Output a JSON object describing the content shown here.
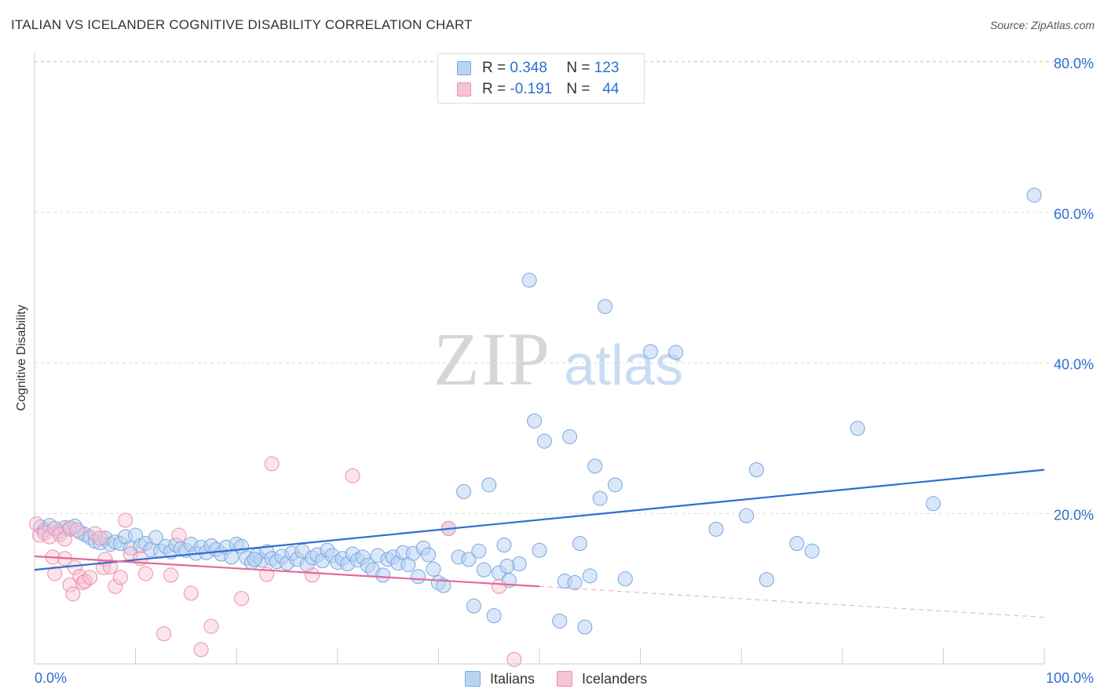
{
  "header": {
    "title": "ITALIAN VS ICELANDER COGNITIVE DISABILITY CORRELATION CHART",
    "source": "Source: ZipAtlas.com"
  },
  "watermark": {
    "zip": "ZIP",
    "atlas": "atlas"
  },
  "legend_top": {
    "rows": [
      {
        "r_label": "R =",
        "r_value": "0.348",
        "n_label": "N =",
        "n_value": "123"
      },
      {
        "r_label": "R =",
        "r_value": "-0.191",
        "n_label": "N =",
        "n_value": "44"
      }
    ]
  },
  "legend_bottom": {
    "italians": "Italians",
    "icelanders": "Icelanders"
  },
  "colors": {
    "italians_fill": "#b9d4f3",
    "italians_stroke": "#7aa6e0",
    "italians_line": "#2c6fd0",
    "icelanders_fill": "#f8c4d3",
    "icelanders_stroke": "#ec8fae",
    "icelanders_line": "#e36a96",
    "axis_label": "#2c6fd0"
  },
  "chart_data": {
    "type": "scatter",
    "title": "ITALIAN VS ICELANDER COGNITIVE DISABILITY CORRELATION CHART",
    "xlabel": "",
    "ylabel": "Cognitive Disability",
    "xlim": [
      0,
      100
    ],
    "ylim": [
      0,
      85
    ],
    "x_tick_labels": [
      "0.0%",
      "100.0%"
    ],
    "y_ticks": [
      20,
      40,
      60,
      80
    ],
    "y_tick_labels": [
      "20.0%",
      "40.0%",
      "60.0%",
      "80.0%"
    ],
    "grid": "horizontal dashed",
    "legend_placement": "top-center",
    "series": [
      {
        "name": "Italians",
        "r": 0.348,
        "n": 123,
        "trend": {
          "x": [
            0,
            100
          ],
          "y": [
            12.5,
            25.8
          ]
        },
        "points": [
          [
            0.6,
            18.2
          ],
          [
            1.0,
            17.8
          ],
          [
            1.5,
            18.4
          ],
          [
            2.0,
            18.0
          ],
          [
            2.5,
            17.6
          ],
          [
            3.0,
            18.1
          ],
          [
            3.5,
            17.9
          ],
          [
            4.0,
            18.3
          ],
          [
            4.5,
            17.5
          ],
          [
            5.0,
            17.2
          ],
          [
            5.5,
            16.8
          ],
          [
            6.0,
            16.3
          ],
          [
            6.5,
            16.1
          ],
          [
            7.0,
            16.7
          ],
          [
            7.5,
            15.9
          ],
          [
            8.0,
            16.2
          ],
          [
            8.5,
            16.0
          ],
          [
            9.0,
            16.9
          ],
          [
            9.5,
            15.4
          ],
          [
            10.0,
            17.1
          ],
          [
            10.5,
            15.7
          ],
          [
            11.0,
            16.0
          ],
          [
            11.5,
            15.2
          ],
          [
            12.0,
            16.8
          ],
          [
            12.5,
            15.0
          ],
          [
            13.0,
            15.6
          ],
          [
            13.5,
            14.9
          ],
          [
            14.0,
            15.8
          ],
          [
            14.5,
            15.3
          ],
          [
            15.0,
            15.1
          ],
          [
            15.5,
            15.9
          ],
          [
            16.0,
            14.7
          ],
          [
            16.5,
            15.5
          ],
          [
            17.0,
            14.8
          ],
          [
            17.5,
            15.7
          ],
          [
            18.0,
            15.2
          ],
          [
            18.5,
            14.6
          ],
          [
            19.0,
            15.5
          ],
          [
            19.5,
            14.2
          ],
          [
            20.0,
            15.9
          ],
          [
            20.5,
            15.6
          ],
          [
            21.0,
            14.1
          ],
          [
            21.5,
            13.5
          ],
          [
            22.0,
            14.4
          ],
          [
            22.5,
            13.8
          ],
          [
            23.0,
            14.9
          ],
          [
            23.5,
            14.0
          ],
          [
            24.0,
            13.6
          ],
          [
            24.5,
            14.3
          ],
          [
            25.0,
            13.4
          ],
          [
            25.5,
            14.7
          ],
          [
            26.0,
            13.9
          ],
          [
            26.5,
            15.0
          ],
          [
            27.0,
            13.2
          ],
          [
            27.5,
            14.1
          ],
          [
            28.0,
            14.5
          ],
          [
            28.5,
            13.7
          ],
          [
            29.0,
            15.1
          ],
          [
            29.5,
            14.4
          ],
          [
            30.0,
            13.5
          ],
          [
            30.5,
            14.0
          ],
          [
            31.0,
            13.3
          ],
          [
            31.5,
            14.6
          ],
          [
            32.0,
            13.8
          ],
          [
            32.5,
            14.2
          ],
          [
            33.0,
            13.1
          ],
          [
            33.5,
            12.5
          ],
          [
            34.0,
            14.4
          ],
          [
            34.5,
            11.8
          ],
          [
            35.0,
            13.9
          ],
          [
            35.5,
            14.2
          ],
          [
            36.0,
            13.4
          ],
          [
            36.5,
            14.8
          ],
          [
            37.0,
            13.2
          ],
          [
            37.5,
            14.7
          ],
          [
            38.0,
            11.6
          ],
          [
            38.5,
            15.4
          ],
          [
            39.0,
            14.5
          ],
          [
            39.5,
            12.6
          ],
          [
            40.0,
            10.8
          ],
          [
            40.5,
            10.4
          ],
          [
            41.0,
            18.0
          ],
          [
            42.0,
            14.2
          ],
          [
            42.5,
            22.9
          ],
          [
            43.0,
            13.9
          ],
          [
            43.5,
            7.7
          ],
          [
            44.0,
            15.0
          ],
          [
            44.5,
            12.5
          ],
          [
            45.0,
            23.8
          ],
          [
            45.5,
            6.4
          ],
          [
            46.0,
            12.1
          ],
          [
            46.5,
            15.8
          ],
          [
            47.0,
            11.1
          ],
          [
            48.0,
            13.3
          ],
          [
            49.0,
            51.0
          ],
          [
            49.5,
            32.3
          ],
          [
            50.0,
            15.1
          ],
          [
            50.5,
            29.6
          ],
          [
            52.0,
            5.7
          ],
          [
            52.5,
            11.0
          ],
          [
            53.0,
            30.2
          ],
          [
            53.5,
            10.8
          ],
          [
            54.0,
            16.0
          ],
          [
            54.5,
            4.9
          ],
          [
            55.0,
            11.7
          ],
          [
            55.5,
            26.3
          ],
          [
            56.0,
            22.0
          ],
          [
            56.5,
            47.5
          ],
          [
            57.5,
            23.8
          ],
          [
            58.5,
            11.3
          ],
          [
            61.0,
            41.5
          ],
          [
            63.5,
            41.4
          ],
          [
            67.5,
            17.9
          ],
          [
            70.5,
            19.7
          ],
          [
            71.5,
            25.8
          ],
          [
            72.5,
            11.2
          ],
          [
            75.5,
            16.0
          ],
          [
            77.0,
            15.0
          ],
          [
            81.5,
            31.3
          ],
          [
            89.0,
            21.3
          ],
          [
            99.0,
            62.3
          ],
          [
            46.8,
            13.0
          ],
          [
            21.8,
            13.9
          ]
        ]
      },
      {
        "name": "Icelanders",
        "r": -0.191,
        "n": 44,
        "trend": {
          "x": [
            0,
            50
          ],
          "y": [
            14.3,
            10.3
          ]
        },
        "trend_dashed": {
          "x": [
            50,
            100
          ],
          "y": [
            10.3,
            6.2
          ]
        },
        "points": [
          [
            0.2,
            18.6
          ],
          [
            0.5,
            17.1
          ],
          [
            1.0,
            17.4
          ],
          [
            1.5,
            16.9
          ],
          [
            2.0,
            18.0
          ],
          [
            2.5,
            17.2
          ],
          [
            3.0,
            16.6
          ],
          [
            3.5,
            18.1
          ],
          [
            1.8,
            14.2
          ],
          [
            2.0,
            12.0
          ],
          [
            3.0,
            14.0
          ],
          [
            3.5,
            10.5
          ],
          [
            3.8,
            9.3
          ],
          [
            4.0,
            12.8
          ],
          [
            4.5,
            11.6
          ],
          [
            4.8,
            10.8
          ],
          [
            5.0,
            11.0
          ],
          [
            5.5,
            11.5
          ],
          [
            6.0,
            17.3
          ],
          [
            6.5,
            16.7
          ],
          [
            6.8,
            12.8
          ],
          [
            7.0,
            13.9
          ],
          [
            7.5,
            12.9
          ],
          [
            8.0,
            10.3
          ],
          [
            8.5,
            11.5
          ],
          [
            9.0,
            19.1
          ],
          [
            9.5,
            14.6
          ],
          [
            10.5,
            14.0
          ],
          [
            11.0,
            12.0
          ],
          [
            12.8,
            4.0
          ],
          [
            13.5,
            11.8
          ],
          [
            14.3,
            17.1
          ],
          [
            15.5,
            9.4
          ],
          [
            16.5,
            1.9
          ],
          [
            17.5,
            5.0
          ],
          [
            20.5,
            8.7
          ],
          [
            23.0,
            11.9
          ],
          [
            23.5,
            26.6
          ],
          [
            27.5,
            11.8
          ],
          [
            31.5,
            25.0
          ],
          [
            41.0,
            18.0
          ],
          [
            46.0,
            10.3
          ],
          [
            47.5,
            0.6
          ],
          [
            4.2,
            17.8
          ]
        ]
      }
    ]
  }
}
